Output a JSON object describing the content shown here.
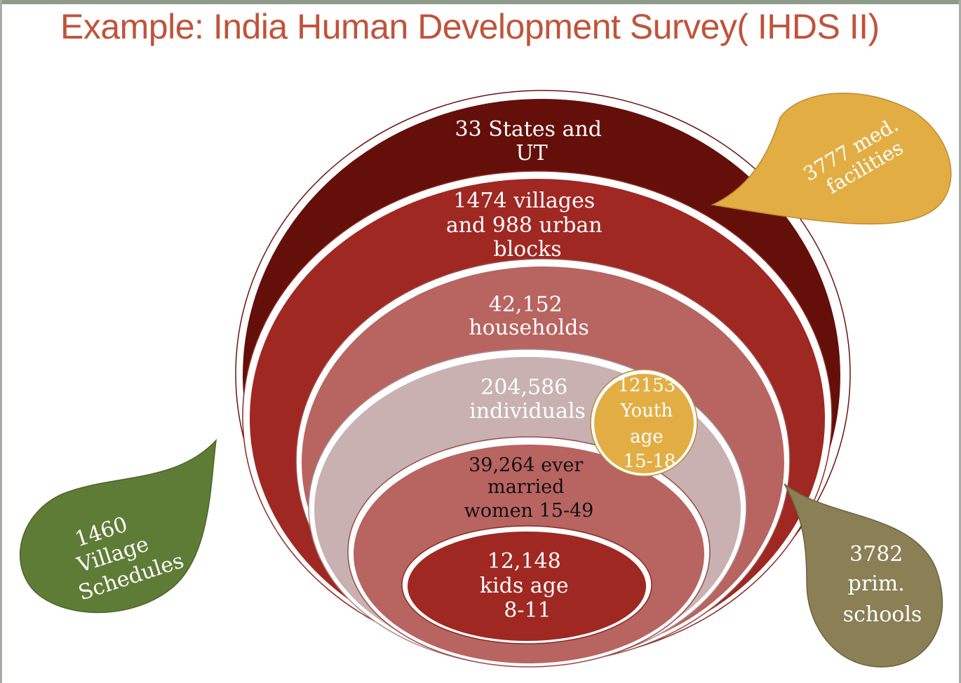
{
  "slide": {
    "title": "Example: India Human Development Survey( IHDS II)"
  },
  "diagram": {
    "levels": [
      {
        "lines": [
          "33 States and",
          "UT"
        ],
        "color": "#650f0a"
      },
      {
        "lines": [
          "1474 villages",
          "and 988 urban",
          "blocks"
        ],
        "color": "#a02822"
      },
      {
        "lines": [
          "42,152",
          "households"
        ],
        "color": "#b86461"
      },
      {
        "lines": [
          "204,586",
          "individuals"
        ],
        "color": "#c9b1b1"
      },
      {
        "lines": [
          "39,264 ever",
          "married",
          "women 15-49"
        ],
        "color": "#b86461"
      },
      {
        "lines": [
          "12,148",
          "kids age",
          "8-11"
        ],
        "color": "#a02822"
      }
    ],
    "callouts": {
      "youth": {
        "lines": [
          "12153",
          "Youth",
          "age",
          "15-18"
        ],
        "color": "#e2ae44"
      },
      "med": {
        "lines": [
          "3777 med.",
          "facilities"
        ],
        "color": "#e2ae44"
      },
      "village": {
        "lines": [
          "1460",
          "Village",
          "Schedules"
        ],
        "color": "#5f7c37"
      },
      "schools": {
        "lines": [
          "3782",
          "prim.",
          "schools"
        ],
        "color": "#8a7f55"
      }
    }
  }
}
